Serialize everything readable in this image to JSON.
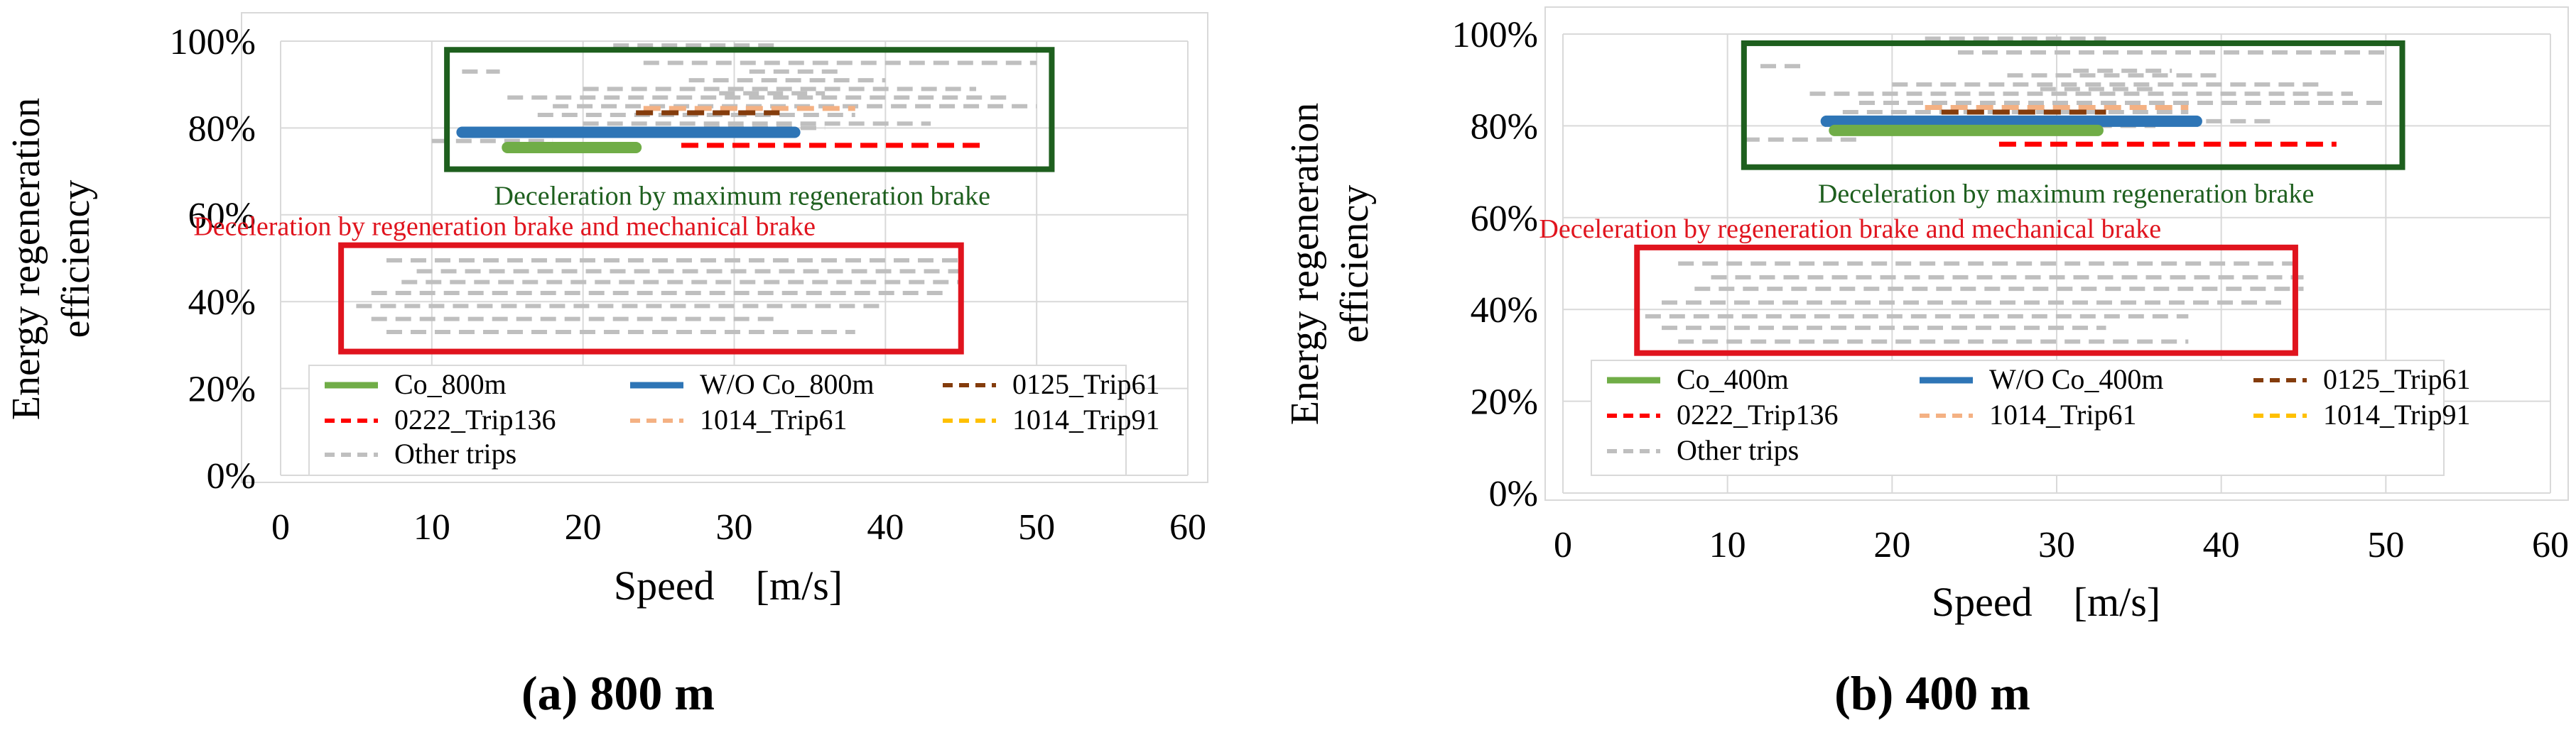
{
  "colors": {
    "co": "#70AD47",
    "wo_co": "#2E75B6",
    "trip_0125": "#843C0C",
    "trip_0222": "#FF0000",
    "trip_1014_61": "#F4B183",
    "trip_1014_91": "#FFC000",
    "other": "#BFBFBF",
    "green_box": "#1E5F1E",
    "red_box": "#E0141E",
    "grid": "#D9D9D9"
  },
  "chart_data": [
    {
      "type": "line",
      "caption": "(a) 800 m",
      "xlabel": "Speed　[m/s]",
      "ylabel_lines": [
        "Energy regeneration",
        "efficiency"
      ],
      "xlim": [
        0,
        60
      ],
      "ylim": [
        0,
        100
      ],
      "x_ticks": [
        "0",
        "10",
        "20",
        "30",
        "40",
        "50",
        "60"
      ],
      "y_ticks": [
        "0%",
        "20%",
        "40%",
        "60%",
        "80%",
        "100%"
      ],
      "grid": true,
      "legend_position": "bottom-inside",
      "annotations": [
        {
          "text": "Deceleration by maximum regeneration brake",
          "color": "green",
          "x_range": [
            11,
            51
          ],
          "y_range": [
            70.5,
            98
          ]
        },
        {
          "text": "Deceleration by regeneration brake and mechanical brake",
          "color": "red",
          "x_range": [
            4,
            45
          ],
          "y_range": [
            28.5,
            53
          ]
        }
      ],
      "series": [
        {
          "name": "Co_800m",
          "style": "solid-thick",
          "color": "co",
          "segments": [
            [
              15,
              23.5,
              75.5
            ]
          ]
        },
        {
          "name": "W/O Co_800m",
          "style": "solid-thick",
          "color": "wo_co",
          "segments": [
            [
              12,
              34,
              79
            ]
          ]
        },
        {
          "name": "0125_Trip61",
          "style": "dashed",
          "color": "trip_0125",
          "segments": [
            [
              23.5,
              33,
              83.5
            ]
          ]
        },
        {
          "name": "0222_Trip136",
          "style": "dashed",
          "color": "trip_0222",
          "segments": [
            [
              26.5,
              46.5,
              76
            ]
          ]
        },
        {
          "name": "1014_Trip61",
          "style": "dashed",
          "color": "trip_1014_61",
          "segments": [
            [
              24,
              38,
              84.5
            ]
          ]
        },
        {
          "name": "1014_Trip91",
          "style": "dashed",
          "color": "trip_1014_91",
          "segments": []
        },
        {
          "name": "Other trips",
          "style": "dashed",
          "color": "other",
          "segments": [
            [
              22,
              33,
              99
            ],
            [
              24,
              50,
              95
            ],
            [
              12,
              14.5,
              93
            ],
            [
              31,
              37,
              93
            ],
            [
              27,
              40,
              91
            ],
            [
              20,
              46,
              89
            ],
            [
              29,
              36,
              88
            ],
            [
              15,
              48,
              87
            ],
            [
              18,
              50,
              85
            ],
            [
              17,
              38,
              83
            ],
            [
              20,
              43,
              81
            ],
            [
              28,
              36,
              80
            ],
            [
              10,
              18,
              77
            ],
            [
              7,
              45,
              49.5
            ],
            [
              9,
              45,
              47
            ],
            [
              8,
              45,
              44.5
            ],
            [
              6,
              44,
              42
            ],
            [
              5,
              40,
              39
            ],
            [
              6,
              33,
              36
            ],
            [
              7,
              38,
              33
            ]
          ]
        }
      ]
    },
    {
      "type": "line",
      "caption": "(b) 400 m",
      "xlabel": "Speed　[m/s]",
      "ylabel_lines": [
        "Energy regeneration",
        "efficiency"
      ],
      "xlim": [
        0,
        60
      ],
      "ylim": [
        0,
        100
      ],
      "x_ticks": [
        "0",
        "10",
        "20",
        "30",
        "40",
        "50",
        "60"
      ],
      "y_ticks": [
        "0%",
        "20%",
        "40%",
        "60%",
        "80%",
        "100%"
      ],
      "grid": true,
      "legend_position": "bottom-inside",
      "annotations": [
        {
          "text": "Deceleration by maximum regeneration brake",
          "color": "green",
          "x_range": [
            11,
            51
          ],
          "y_range": [
            71,
            98
          ]
        },
        {
          "text": "Deceleration by regeneration brake and mechanical brake",
          "color": "red",
          "x_range": [
            4.5,
            44.5
          ],
          "y_range": [
            30.5,
            53.5
          ]
        }
      ],
      "series": [
        {
          "name": "Co_400m",
          "style": "solid-thick",
          "color": "co",
          "segments": [
            [
              16.5,
              32.5,
              79
            ]
          ]
        },
        {
          "name": "W/O Co_400m",
          "style": "solid-thick",
          "color": "wo_co",
          "segments": [
            [
              16,
              38.5,
              81
            ]
          ]
        },
        {
          "name": "0125_Trip61",
          "style": "dashed",
          "color": "trip_0125",
          "segments": [
            [
              23,
              33,
              83
            ]
          ]
        },
        {
          "name": "0222_Trip136",
          "style": "dashed",
          "color": "trip_0222",
          "segments": [
            [
              26.5,
              47,
              76
            ]
          ]
        },
        {
          "name": "1014_Trip61",
          "style": "dashed",
          "color": "trip_1014_61",
          "segments": [
            [
              22,
              38,
              84
            ]
          ]
        },
        {
          "name": "1014_Trip91",
          "style": "dashed",
          "color": "trip_1014_91",
          "segments": []
        },
        {
          "name": "Other trips",
          "style": "dashed",
          "color": "other",
          "segments": [
            [
              22,
              33,
              99
            ],
            [
              24,
              50,
              96
            ],
            [
              12,
              14.5,
              93
            ],
            [
              31,
              37,
              92
            ],
            [
              27,
              40,
              91
            ],
            [
              20,
              46,
              89
            ],
            [
              29,
              36,
              88
            ],
            [
              15,
              48,
              87
            ],
            [
              18,
              50,
              85
            ],
            [
              17,
              38,
              83
            ],
            [
              20,
              43,
              81
            ],
            [
              28,
              36,
              80
            ],
            [
              11,
              18,
              77
            ],
            [
              7,
              45,
              50
            ],
            [
              9,
              45,
              47
            ],
            [
              8,
              45,
              44.5
            ],
            [
              6,
              44,
              41.5
            ],
            [
              5,
              38,
              38.5
            ],
            [
              6,
              33,
              36
            ],
            [
              7,
              38,
              33
            ]
          ]
        }
      ]
    }
  ]
}
